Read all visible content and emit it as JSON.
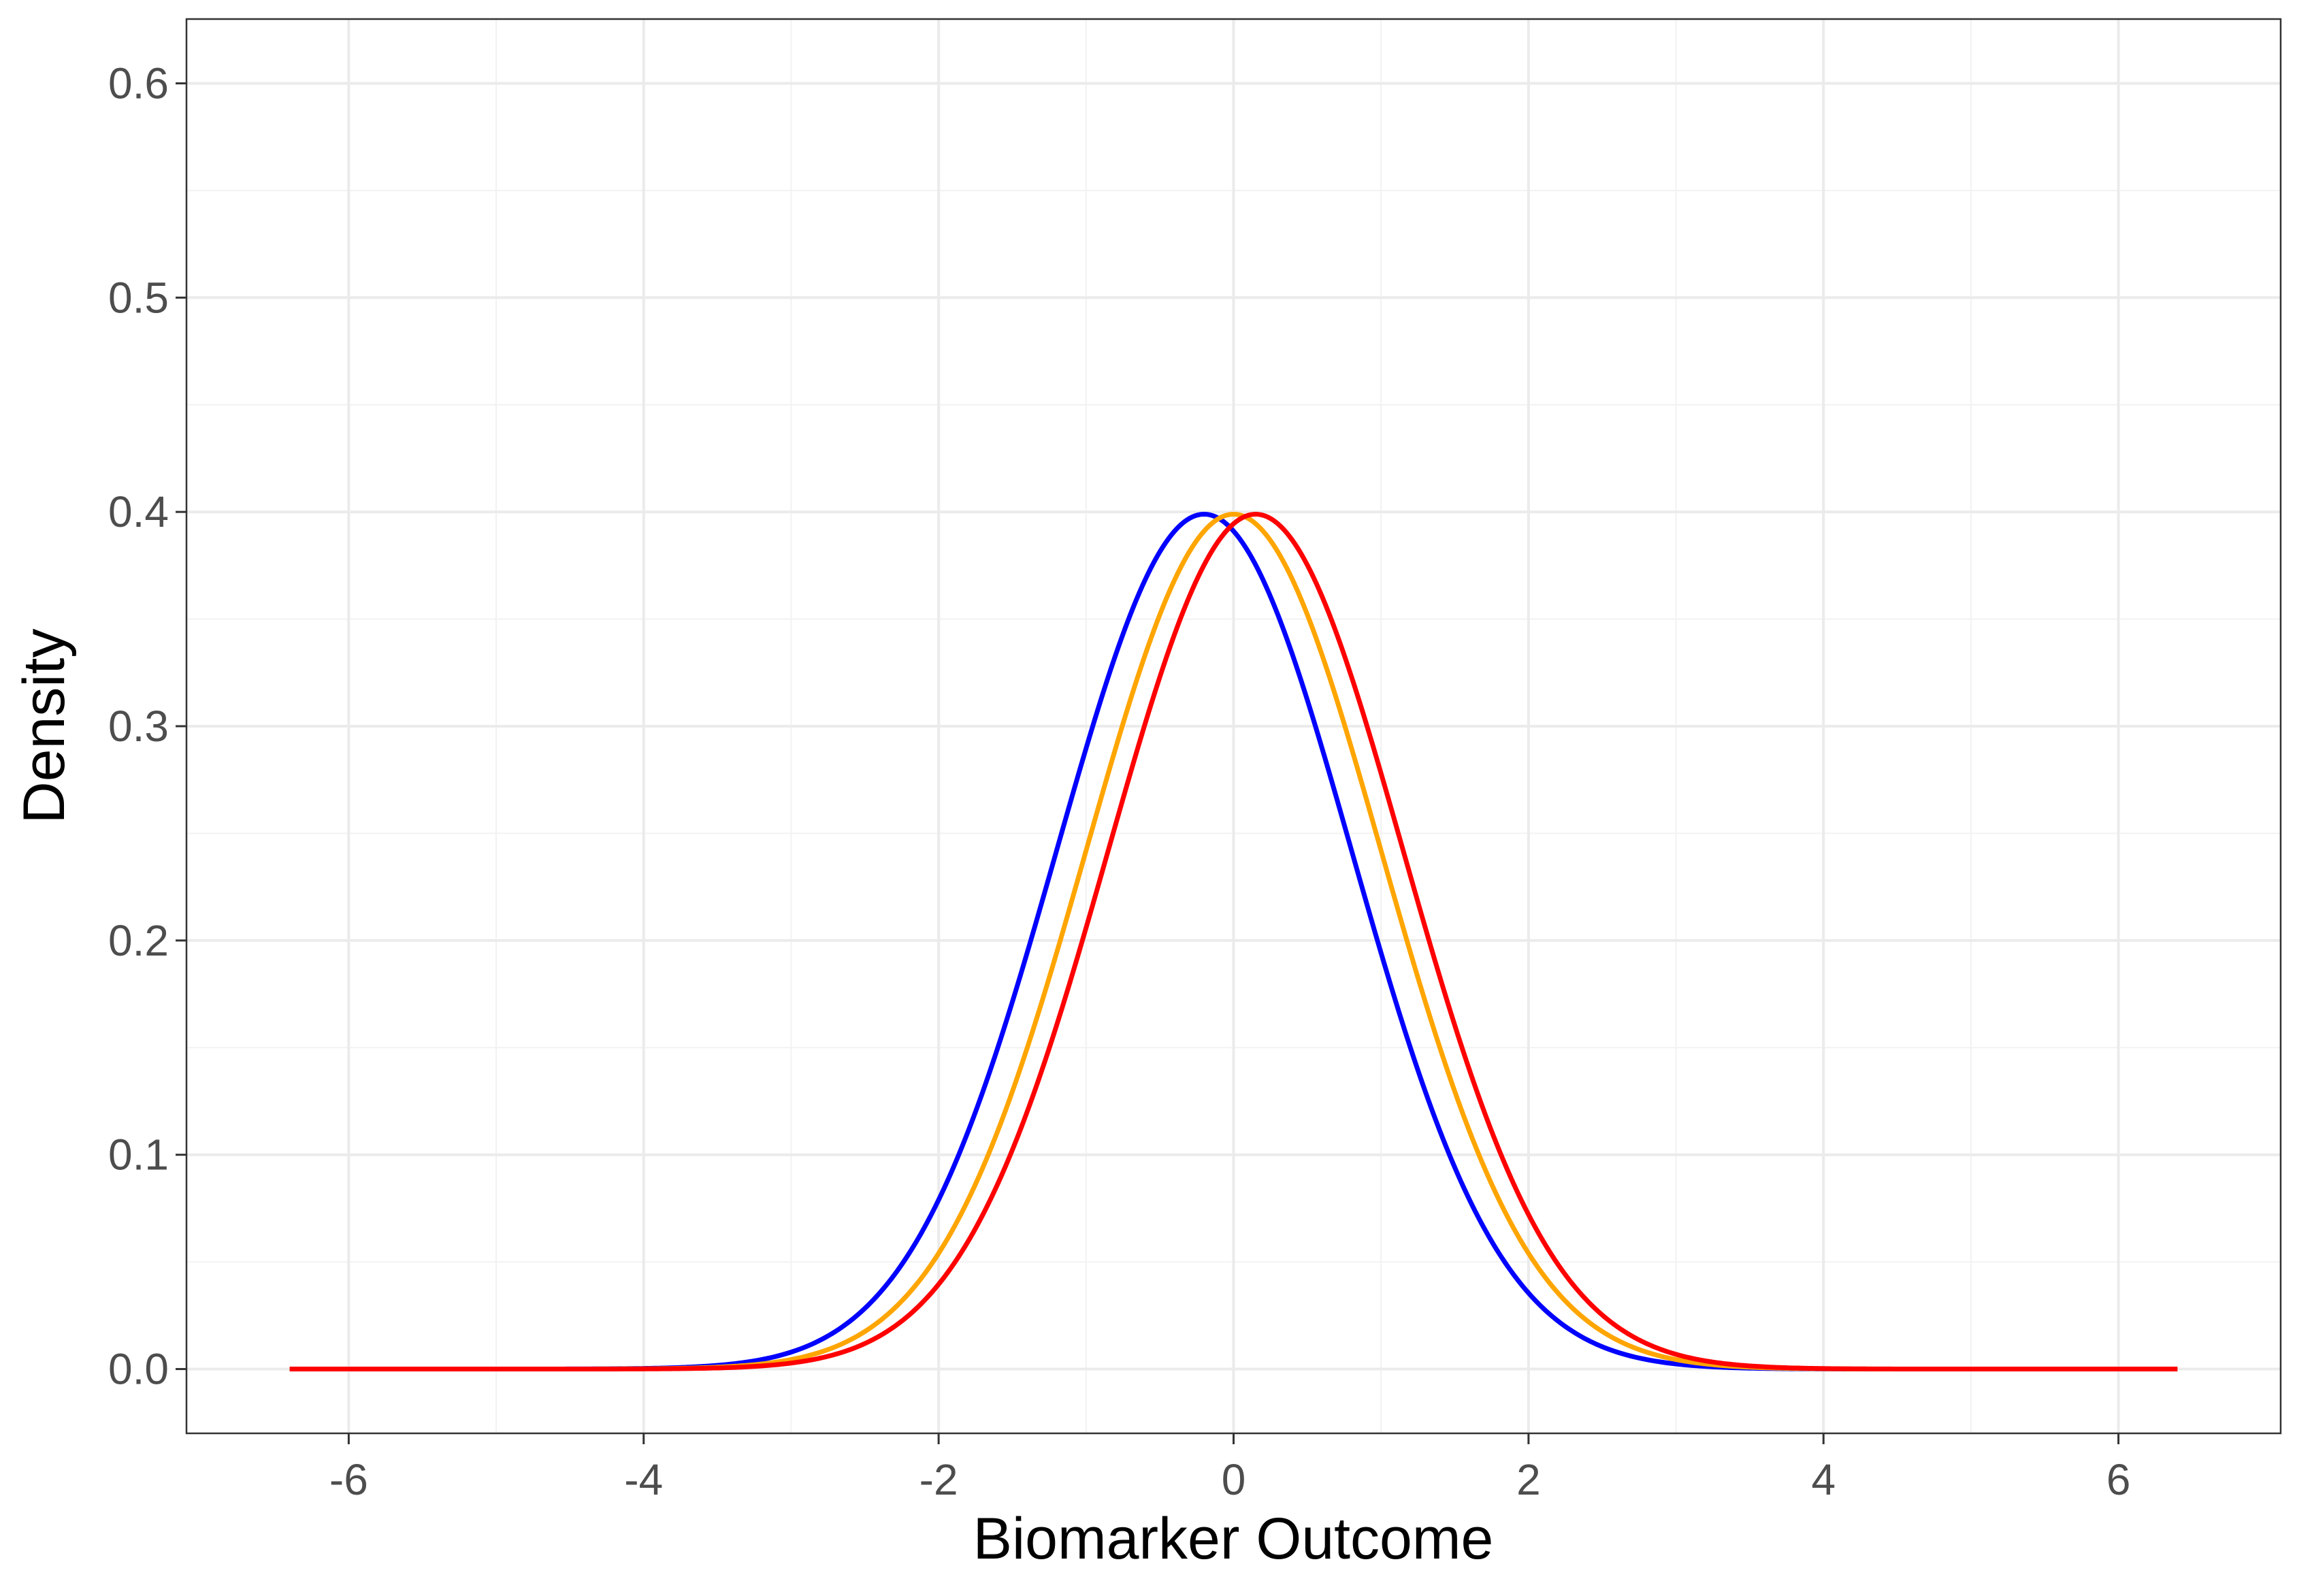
{
  "chart_data": {
    "type": "line",
    "title": "",
    "xlabel": "Biomarker Outcome",
    "ylabel": "Density",
    "xlim": [
      -7.1,
      7.1
    ],
    "ylim": [
      -0.03,
      0.63
    ],
    "x_ticks": [
      -6,
      -4,
      -2,
      0,
      2,
      4,
      6
    ],
    "x_tick_labels": [
      "-6",
      "-4",
      "-2",
      "0",
      "2",
      "4",
      "6"
    ],
    "y_ticks": [
      0.0,
      0.1,
      0.2,
      0.3,
      0.4,
      0.5,
      0.6
    ],
    "y_tick_labels": [
      "0.0",
      "0.1",
      "0.2",
      "0.3",
      "0.4",
      "0.5",
      "0.6"
    ],
    "grid": true,
    "legend": "none",
    "x_range": [
      -6.4,
      6.4
    ],
    "series": [
      {
        "color": "#0000ff",
        "distribution": "normal",
        "mean": -0.2,
        "sd": 1
      },
      {
        "color": "#ffa500",
        "distribution": "normal",
        "mean": 0.0,
        "sd": 1
      },
      {
        "color": "#ff0000",
        "distribution": "normal",
        "mean": 0.15,
        "sd": 1
      }
    ]
  }
}
